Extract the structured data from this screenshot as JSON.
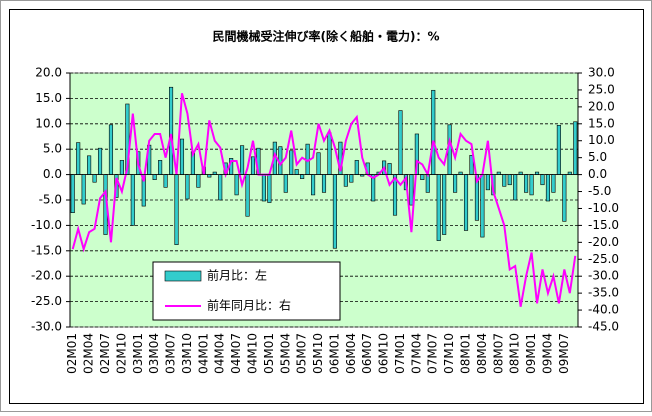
{
  "chart_data": {
    "type": "combo",
    "title": "民間機械受注伸び率(除く船舶・電力)：%",
    "categories": [
      "02M01",
      null,
      null,
      "02M04",
      null,
      null,
      "02M07",
      null,
      null,
      "02M10",
      null,
      null,
      "03M01",
      null,
      null,
      "03M04",
      null,
      null,
      "03M07",
      null,
      null,
      "03M10",
      null,
      null,
      "04M01",
      null,
      null,
      "04M04",
      null,
      null,
      "04M07",
      null,
      null,
      "04M10",
      null,
      null,
      "05M01",
      null,
      null,
      "05M04",
      null,
      null,
      "05M07",
      null,
      null,
      "05M10",
      null,
      null,
      "06M01",
      null,
      null,
      "06M04",
      null,
      null,
      "06M07",
      null,
      null,
      "06M10",
      null,
      null,
      "07M01",
      null,
      null,
      "07M04",
      null,
      null,
      "07M07",
      null,
      null,
      "07M10",
      null,
      null,
      "08M01",
      null,
      null,
      "08M04",
      null,
      null,
      "08M07",
      null,
      null,
      "08M10",
      null,
      null,
      "09M01",
      null,
      null,
      "09M04",
      null,
      null,
      "09M07",
      null,
      null
    ],
    "series": [
      {
        "name": "前月比：左",
        "type": "bar",
        "color": "#33cccc",
        "values": [
          -7.5,
          6.3,
          -5.8,
          3.7,
          -1.5,
          5.2,
          -11.8,
          9.8,
          -4.5,
          2.8,
          13.9,
          -10,
          4.5,
          -6.2,
          5.8,
          -1,
          2.8,
          -2.5,
          17.2,
          -13.8,
          7,
          -4.8,
          4.5,
          -2.5,
          1.5,
          -0.5,
          0.5,
          -5,
          2.3,
          3.2,
          -4,
          5.7,
          -8.2,
          3.5,
          5.2,
          -5.2,
          -5.5,
          6.4,
          5.5,
          -3.5,
          4.7,
          1,
          -0.8,
          6,
          -4,
          4.3,
          -3.5,
          8.2,
          -14.5,
          6.4,
          -2.3,
          -1.5,
          2.8,
          -0.3,
          2.3,
          -5.2,
          0.5,
          2.7,
          2.2,
          -8,
          12.6,
          -3,
          -6,
          8,
          -1,
          -3.5,
          16.6,
          -13,
          -11.8,
          9.8,
          -3.5,
          0.5,
          -11,
          3.8,
          -9,
          -12.3,
          -3,
          -4,
          0.5,
          -2.3,
          -2,
          -5,
          0.5,
          -3.5,
          -4,
          0.5,
          -2,
          -5.2,
          -3.5,
          9.7,
          -9.2,
          0.5,
          10.4
        ]
      },
      {
        "name": "前年同月比：右",
        "type": "line",
        "axis": "y2",
        "color": "#ff00ff",
        "values": [
          -22,
          -16,
          -22,
          -17,
          -16,
          -7,
          -5,
          -20,
          -1,
          -5,
          2,
          18,
          3,
          -2,
          10,
          12,
          12,
          5,
          12,
          0,
          24,
          18,
          6,
          9,
          0,
          16,
          10,
          8,
          0,
          4,
          4,
          -3,
          2,
          10,
          0,
          0,
          0,
          6,
          3,
          5,
          13,
          3,
          5,
          4,
          5,
          15,
          10,
          13,
          8,
          1,
          10,
          15,
          17,
          5,
          0,
          -1,
          0,
          2,
          -3,
          -1,
          -3,
          -1,
          -17,
          4,
          3,
          0,
          10,
          5,
          3,
          10,
          5,
          12,
          10,
          9,
          -2,
          0,
          10,
          -5,
          -10,
          -15,
          -28,
          -27,
          -39,
          -30,
          -23,
          -38,
          -28,
          -35,
          -30,
          -38,
          -28,
          -35,
          -24
        ]
      }
    ],
    "ylim": [
      -30,
      20
    ],
    "yticks": [
      {
        "value": 20,
        "label": "20.0"
      },
      {
        "value": 15,
        "label": "15.0"
      },
      {
        "value": 10,
        "label": "10.0"
      },
      {
        "value": 5,
        "label": "5.0"
      },
      {
        "value": 0,
        "label": "0.0"
      },
      {
        "value": -5,
        "label": "-5.0"
      },
      {
        "value": -10,
        "label": "-10.0"
      },
      {
        "value": -15,
        "label": "-15.0"
      },
      {
        "value": -20,
        "label": "-20.0"
      },
      {
        "value": -25,
        "label": "-25.0"
      },
      {
        "value": -30,
        "label": "-30.0"
      }
    ],
    "y2lim": [
      -45,
      30
    ],
    "y2ticks": [
      {
        "value": 30,
        "label": "30.0"
      },
      {
        "value": 25,
        "label": "25.0"
      },
      {
        "value": 20,
        "label": "20.0"
      },
      {
        "value": 15,
        "label": "15.0"
      },
      {
        "value": 10,
        "label": "10.0"
      },
      {
        "value": 5,
        "label": "5.0"
      },
      {
        "value": 0,
        "label": "0.0"
      },
      {
        "value": -5,
        "label": "-5.0"
      },
      {
        "value": -10,
        "label": "-10.0"
      },
      {
        "value": -15,
        "label": "-15.0"
      },
      {
        "value": -20,
        "label": "-20.0"
      },
      {
        "value": -25,
        "label": "-25.0"
      },
      {
        "value": -30,
        "label": "-30.0"
      },
      {
        "value": -35,
        "label": "-35.0"
      },
      {
        "value": -40,
        "label": "-40.0"
      },
      {
        "value": -45,
        "label": "-45.0"
      }
    ],
    "grid": true,
    "plot_background": "#ccffcc",
    "legend": "lower-left"
  }
}
